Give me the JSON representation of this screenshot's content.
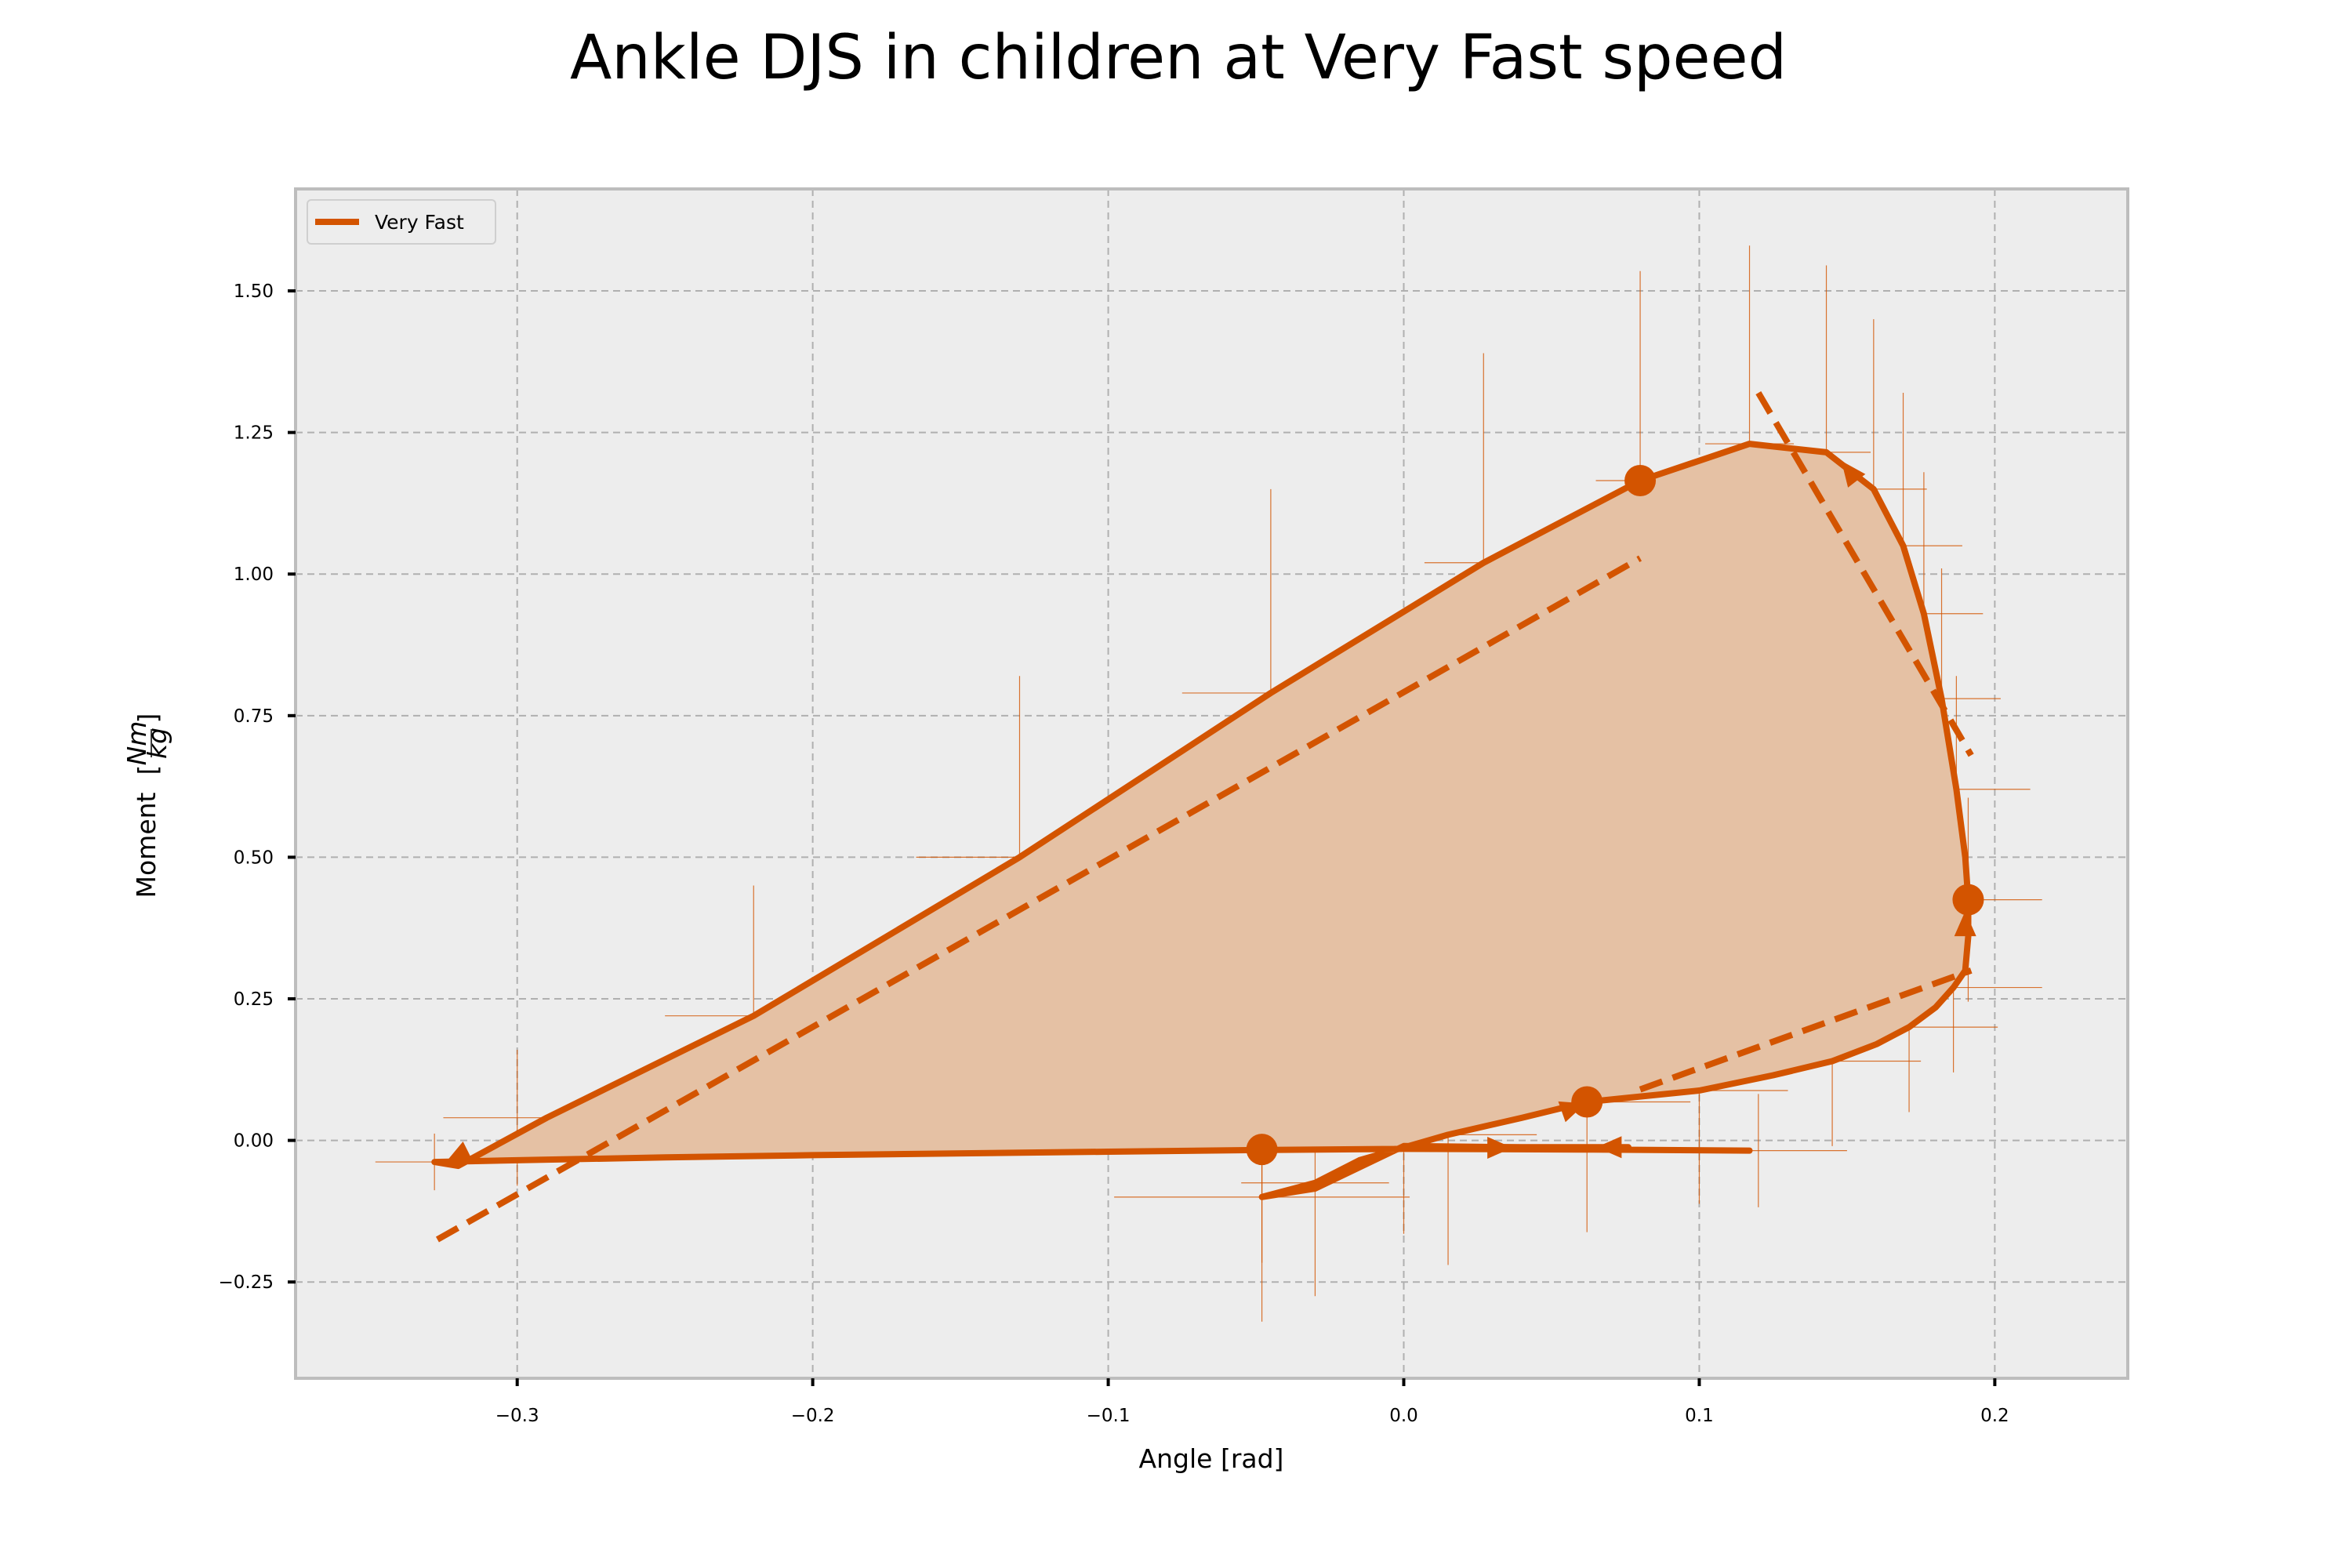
{
  "chart_data": {
    "type": "line",
    "title": "Ankle DJS in children at Very Fast speed",
    "xlabel": "Angle [rad]",
    "ylabel_main": "Moment",
    "ylabel_num": "Nm",
    "ylabel_den": "kg",
    "xlim": [
      -0.375,
      0.245
    ],
    "ylim": [
      -0.42,
      1.68
    ],
    "xticks": [
      -0.3,
      -0.2,
      -0.1,
      0.0,
      0.1,
      0.2
    ],
    "xtick_labels": [
      "−0.3",
      "−0.2",
      "−0.1",
      "0.0",
      "0.1",
      "0.2"
    ],
    "yticks": [
      -0.25,
      0.0,
      0.25,
      0.5,
      0.75,
      1.0,
      1.25,
      1.5
    ],
    "ytick_labels": [
      "−0.25",
      "0.00",
      "0.25",
      "0.50",
      "0.75",
      "1.00",
      "1.25",
      "1.50"
    ],
    "grid": true,
    "legend_position": "top-left",
    "colors": {
      "series": "#d35400",
      "fill": "#e5c1a4",
      "background": "#ededed",
      "grid": "#b0b0b0",
      "frame": "#bdbdbd"
    },
    "series": [
      {
        "name": "Very Fast",
        "x": [
          0.117,
          0.06,
          0.0,
          -0.05,
          -0.1,
          -0.2,
          -0.25,
          -0.3,
          -0.328,
          -0.32,
          -0.29,
          -0.22,
          -0.13,
          -0.045,
          0.027,
          0.08,
          0.117,
          0.143,
          0.159,
          0.169,
          0.176,
          0.182,
          0.187,
          0.19,
          0.191,
          0.191,
          0.19,
          0.186,
          0.18,
          0.171,
          0.16,
          0.145,
          0.125,
          0.1,
          0.062,
          0.04,
          0.015,
          -0.015,
          -0.03,
          -0.048,
          -0.03,
          0.0,
          0.04,
          0.076
        ],
        "y": [
          -0.018,
          -0.016,
          -0.015,
          -0.017,
          -0.02,
          -0.026,
          -0.03,
          -0.035,
          -0.038,
          -0.045,
          0.04,
          0.22,
          0.5,
          0.79,
          1.02,
          1.165,
          1.23,
          1.215,
          1.15,
          1.05,
          0.93,
          0.78,
          0.62,
          0.5,
          0.425,
          0.36,
          0.3,
          0.27,
          0.235,
          0.2,
          0.17,
          0.14,
          0.115,
          0.088,
          0.068,
          0.04,
          0.01,
          -0.035,
          -0.075,
          -0.1,
          -0.085,
          -0.01,
          -0.012,
          -0.012
        ]
      }
    ],
    "markers": [
      {
        "x": 0.08,
        "y": 1.165
      },
      {
        "x": 0.191,
        "y": 0.425
      },
      {
        "x": 0.062,
        "y": 0.068
      },
      {
        "x": -0.048,
        "y": -0.016
      }
    ],
    "arrows": [
      {
        "x": 0.151,
        "y": 1.18,
        "dir": [
          -1.0,
          1.3
        ]
      },
      {
        "x": 0.19,
        "y": 0.38,
        "dir": [
          0.0,
          1.0
        ]
      },
      {
        "x": 0.057,
        "y": 0.057,
        "dir": [
          1.0,
          0.35
        ]
      },
      {
        "x": 0.032,
        "y": -0.013,
        "dir": [
          1.0,
          0.0
        ]
      },
      {
        "x": 0.07,
        "y": -0.012,
        "dir": [
          -1.0,
          0.0
        ]
      },
      {
        "x": -0.32,
        "y": -0.028,
        "dir": [
          -1.0,
          -0.5
        ]
      }
    ],
    "fit_lines": [
      {
        "x": [
          -0.327,
          0.08
        ],
        "y": [
          -0.175,
          1.028
        ]
      },
      {
        "x": [
          0.12,
          0.192
        ],
        "y": [
          1.32,
          0.68
        ]
      },
      {
        "x": [
          0.08,
          0.192
        ],
        "y": [
          0.09,
          0.3
        ]
      }
    ],
    "error_bars": [
      {
        "x": -0.328,
        "y": -0.038,
        "xerr": 0.02,
        "yerr": 0.05
      },
      {
        "x": -0.3,
        "y": 0.04,
        "xerr": 0.025,
        "yerr": 0.12
      },
      {
        "x": -0.22,
        "y": 0.22,
        "xerr": 0.03,
        "yerr": 0.23
      },
      {
        "x": -0.13,
        "y": 0.5,
        "xerr": 0.035,
        "yerr": 0.32
      },
      {
        "x": -0.045,
        "y": 0.79,
        "xerr": 0.03,
        "yerr": 0.36
      },
      {
        "x": 0.027,
        "y": 1.02,
        "xerr": 0.02,
        "yerr": 0.37
      },
      {
        "x": 0.08,
        "y": 1.165,
        "xerr": 0.015,
        "yerr": 0.37
      },
      {
        "x": 0.117,
        "y": 1.23,
        "xerr": 0.015,
        "yerr": 0.35
      },
      {
        "x": 0.143,
        "y": 1.215,
        "xerr": 0.015,
        "yerr": 0.33
      },
      {
        "x": 0.159,
        "y": 1.15,
        "xerr": 0.018,
        "yerr": 0.3
      },
      {
        "x": 0.169,
        "y": 1.05,
        "xerr": 0.02,
        "yerr": 0.27
      },
      {
        "x": 0.176,
        "y": 0.93,
        "xerr": 0.02,
        "yerr": 0.25
      },
      {
        "x": 0.182,
        "y": 0.78,
        "xerr": 0.02,
        "yerr": 0.23
      },
      {
        "x": 0.187,
        "y": 0.62,
        "xerr": 0.025,
        "yerr": 0.2
      },
      {
        "x": 0.191,
        "y": 0.425,
        "xerr": 0.025,
        "yerr": 0.18
      },
      {
        "x": 0.186,
        "y": 0.27,
        "xerr": 0.03,
        "yerr": 0.15
      },
      {
        "x": 0.171,
        "y": 0.2,
        "xerr": 0.03,
        "yerr": 0.15
      },
      {
        "x": 0.145,
        "y": 0.14,
        "xerr": 0.03,
        "yerr": 0.15
      },
      {
        "x": 0.1,
        "y": 0.088,
        "xerr": 0.03,
        "yerr": 0.2
      },
      {
        "x": 0.062,
        "y": 0.068,
        "xerr": 0.035,
        "yerr": 0.23
      },
      {
        "x": 0.015,
        "y": 0.01,
        "xerr": 0.03,
        "yerr": 0.23
      },
      {
        "x": -0.03,
        "y": -0.075,
        "xerr": 0.025,
        "yerr": 0.2
      },
      {
        "x": -0.048,
        "y": -0.016,
        "xerr": 0.025,
        "yerr": 0.2
      },
      {
        "x": -0.048,
        "y": -0.1,
        "xerr": 0.05,
        "yerr": 0.22
      },
      {
        "x": 0.0,
        "y": -0.015,
        "xerr": 0.02,
        "yerr": 0.15
      },
      {
        "x": 0.12,
        "y": -0.018,
        "xerr": 0.03,
        "yerr": 0.1
      }
    ]
  }
}
